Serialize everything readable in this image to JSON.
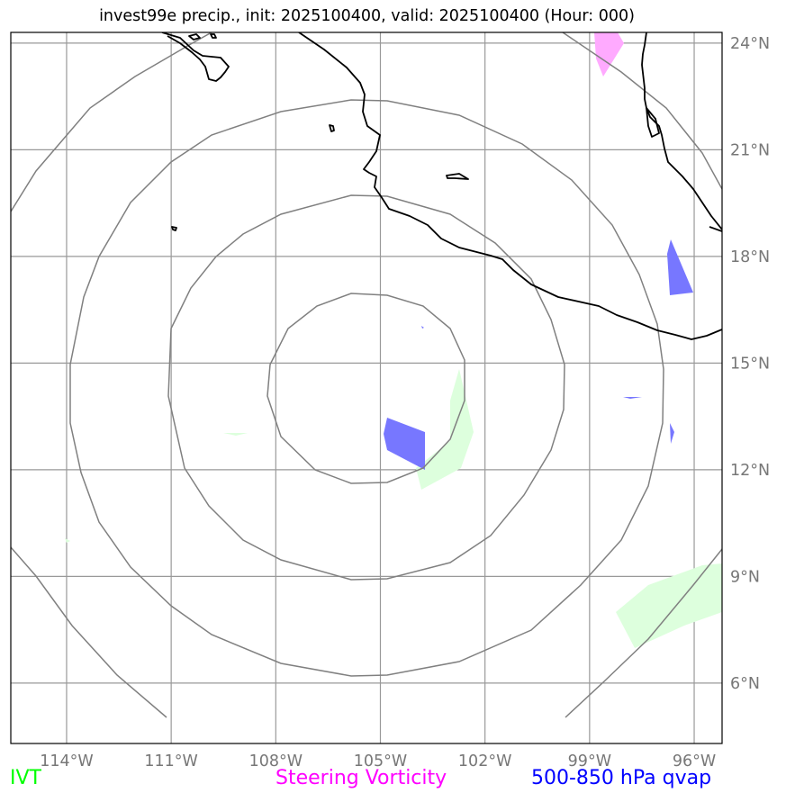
{
  "title": "invest99e precip., init: 2025100400, valid: 2025100400 (Hour: 000)",
  "map": {
    "lon_range": [
      -115.6,
      -95.2
    ],
    "lat_range": [
      4.3,
      24.3
    ],
    "lon_ticks": [
      {
        "value": -114,
        "label": "114°W"
      },
      {
        "value": -111,
        "label": "111°W"
      },
      {
        "value": -108,
        "label": "108°W"
      },
      {
        "value": -105,
        "label": "105°W"
      },
      {
        "value": -102,
        "label": "102°W"
      },
      {
        "value": -99,
        "label": "99°W"
      },
      {
        "value": -96,
        "label": "96°W"
      }
    ],
    "lat_ticks": [
      {
        "value": 24,
        "label": "24°N"
      },
      {
        "value": 21,
        "label": "21°N"
      },
      {
        "value": 18,
        "label": "18°N"
      },
      {
        "value": 15,
        "label": "15°N"
      },
      {
        "value": 12,
        "label": "12°N"
      },
      {
        "value": 9,
        "label": "9°N"
      },
      {
        "value": 6,
        "label": "6°N"
      }
    ],
    "storm_center": {
      "lon": -105,
      "lat": 14
    },
    "range_ring_count": 4,
    "colors": {
      "coastline": "#000000",
      "grid": "#999999",
      "rings": "#808080",
      "ivt": "#ddffdd",
      "vorticity": "#ffaaff",
      "qvap": "#7777ff"
    }
  },
  "legend": {
    "ivt": {
      "label": "IVT",
      "color": "#00ff00"
    },
    "vorticity": {
      "label": "Steering Vorticity",
      "color": "#ff00ff"
    },
    "qvap": {
      "label": "500-850 hPa qvap",
      "color": "#0000ff"
    }
  }
}
